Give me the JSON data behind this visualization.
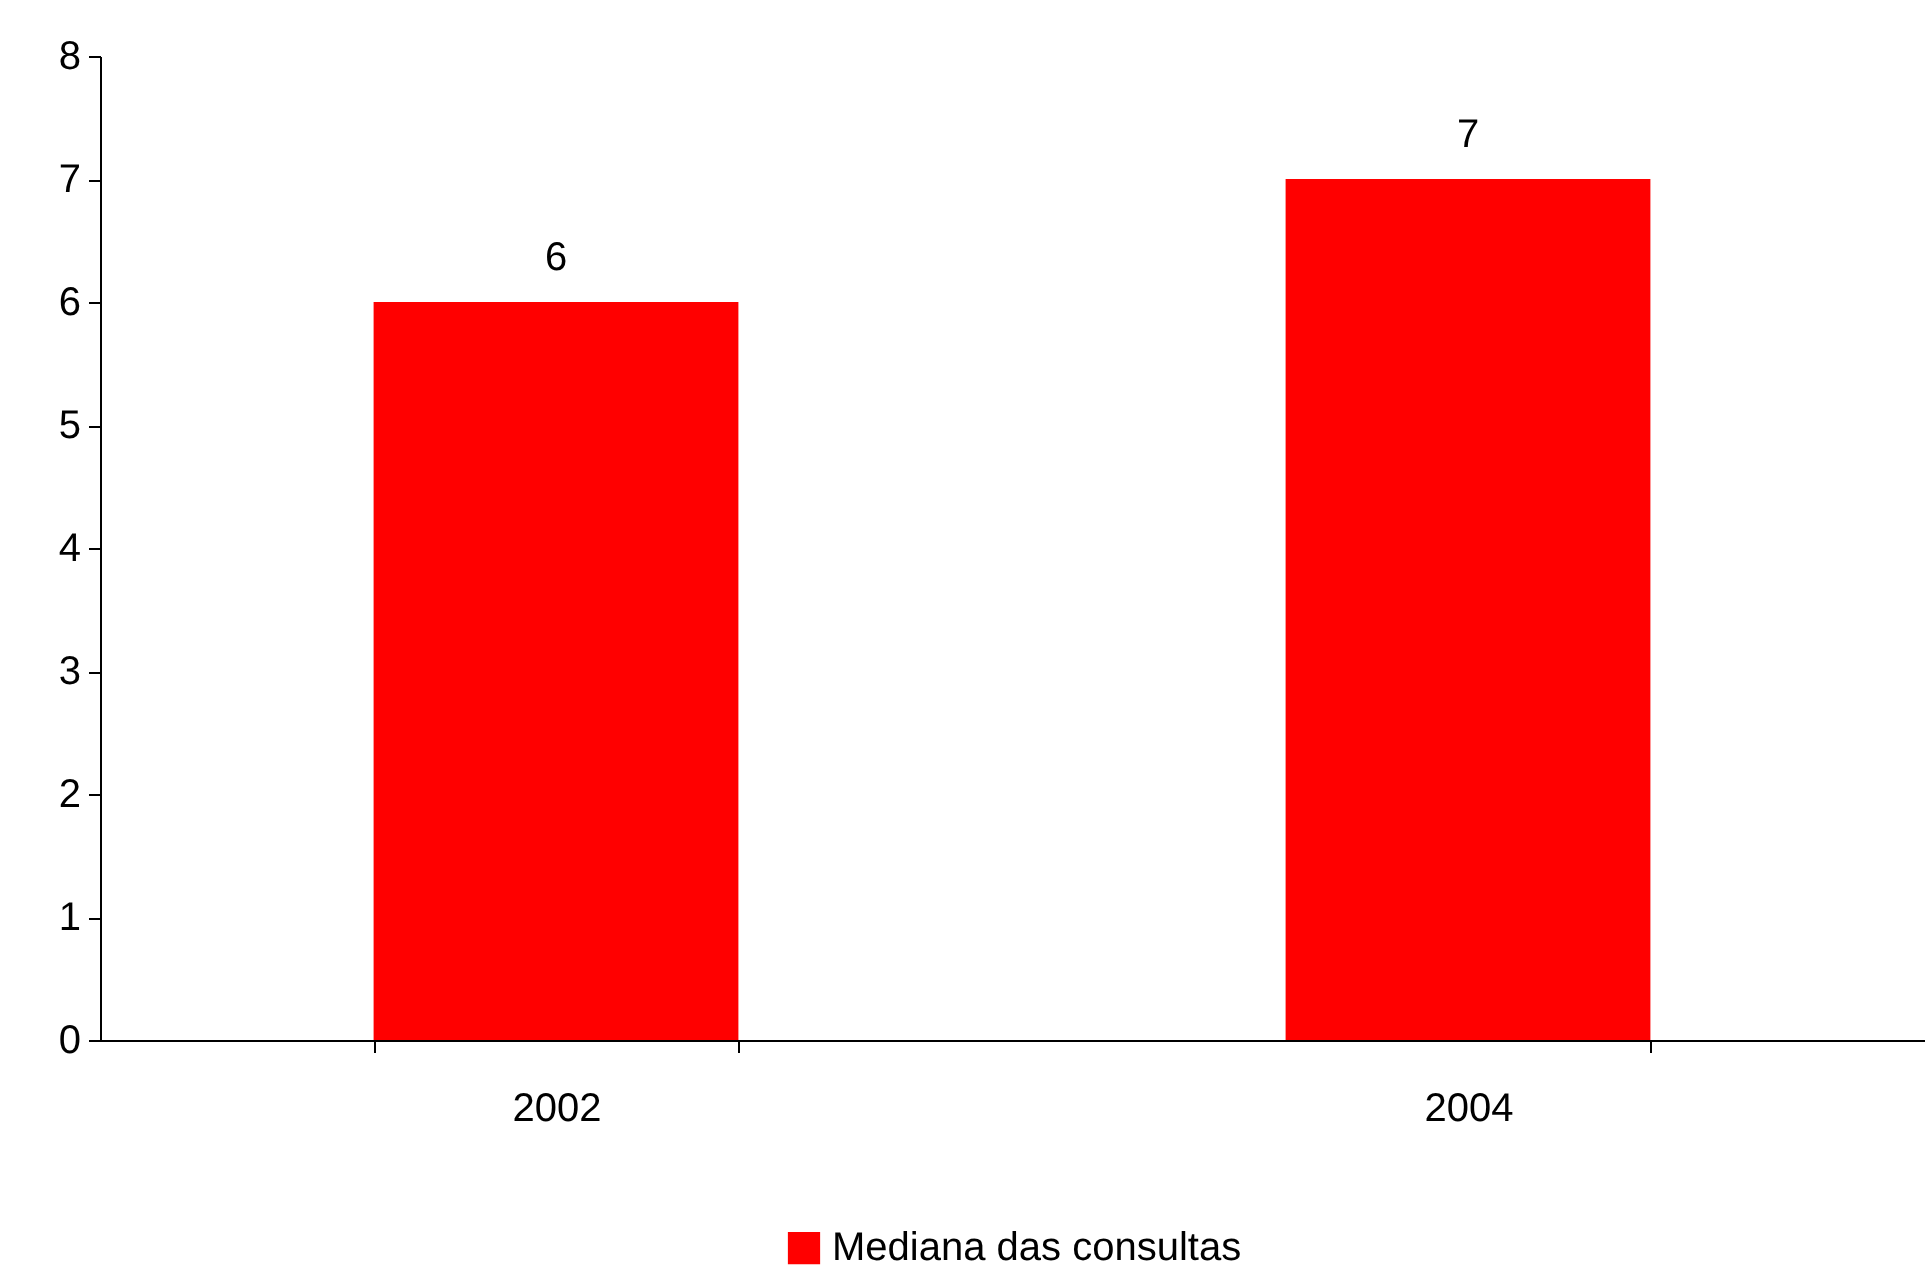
{
  "chart_data": {
    "type": "bar",
    "categories": [
      "2002",
      "2004"
    ],
    "series": [
      {
        "name": "Mediana das consultas",
        "color": "#ff0000",
        "values": [
          6,
          7
        ]
      }
    ],
    "ylim": [
      0,
      8
    ],
    "yticks": [
      0,
      1,
      2,
      3,
      4,
      5,
      6,
      7,
      8
    ],
    "grid": false,
    "legend": "bottom",
    "data_labels": true
  }
}
